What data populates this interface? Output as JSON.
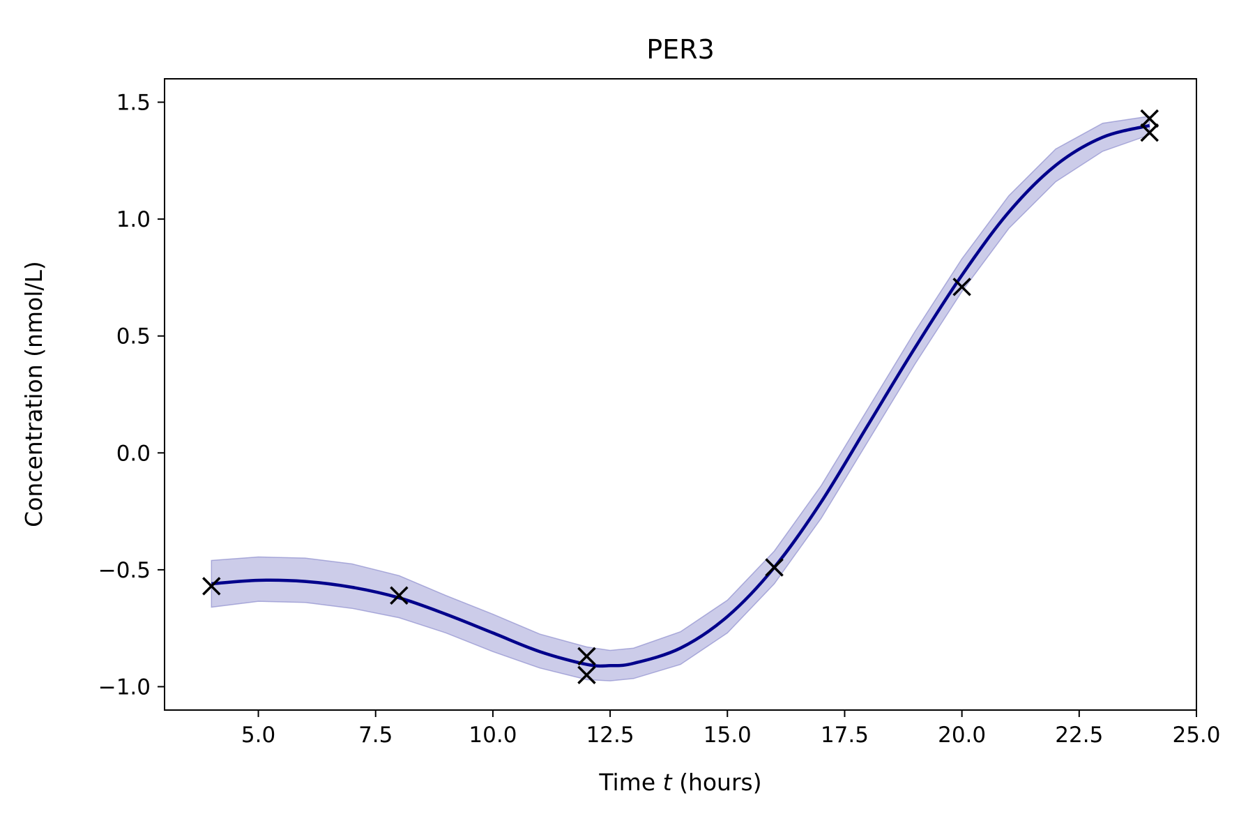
{
  "chart_data": {
    "type": "line",
    "title": "PER3",
    "xlabel_prefix": "Time ",
    "xlabel_var": "t",
    "xlabel_suffix": " (hours)",
    "ylabel": "Concentration (nmol/L)",
    "xlim": [
      3.0,
      25.0
    ],
    "ylim": [
      -1.1,
      1.6
    ],
    "xticks": [
      5.0,
      7.5,
      10.0,
      12.5,
      15.0,
      17.5,
      20.0,
      22.5,
      25.0
    ],
    "xtick_labels": [
      "5.0",
      "7.5",
      "10.0",
      "12.5",
      "15.0",
      "17.5",
      "20.0",
      "22.5",
      "25.0"
    ],
    "yticks": [
      -1.0,
      -0.5,
      0.0,
      0.5,
      1.0,
      1.5
    ],
    "ytick_labels": [
      "−1.0",
      "−0.5",
      "0.0",
      "0.5",
      "1.0",
      "1.5"
    ],
    "grid": false,
    "colors": {
      "line": "#00008b",
      "band": "#8080c8",
      "markers": "#000000"
    },
    "fit": {
      "x": [
        4,
        5,
        6,
        7,
        8,
        9,
        10,
        11,
        12,
        12.5,
        13,
        14,
        15,
        16,
        17,
        18,
        19,
        20,
        21,
        22,
        23,
        24
      ],
      "y": [
        -0.56,
        -0.545,
        -0.55,
        -0.575,
        -0.62,
        -0.69,
        -0.77,
        -0.85,
        -0.905,
        -0.91,
        -0.9,
        -0.835,
        -0.7,
        -0.49,
        -0.21,
        0.12,
        0.45,
        0.76,
        1.03,
        1.23,
        1.35,
        1.4
      ],
      "lower": [
        -0.66,
        -0.635,
        -0.64,
        -0.665,
        -0.705,
        -0.77,
        -0.85,
        -0.92,
        -0.97,
        -0.975,
        -0.965,
        -0.905,
        -0.77,
        -0.56,
        -0.28,
        0.05,
        0.38,
        0.69,
        0.96,
        1.16,
        1.29,
        1.36
      ],
      "upper": [
        -0.46,
        -0.445,
        -0.45,
        -0.475,
        -0.525,
        -0.61,
        -0.69,
        -0.775,
        -0.83,
        -0.845,
        -0.835,
        -0.765,
        -0.63,
        -0.42,
        -0.14,
        0.19,
        0.52,
        0.83,
        1.1,
        1.3,
        1.41,
        1.44
      ]
    },
    "observations": {
      "x": [
        4,
        8,
        12,
        12,
        16,
        20,
        24,
        24
      ],
      "y": [
        -0.57,
        -0.61,
        -0.87,
        -0.95,
        -0.49,
        0.71,
        1.43,
        1.37
      ]
    }
  }
}
